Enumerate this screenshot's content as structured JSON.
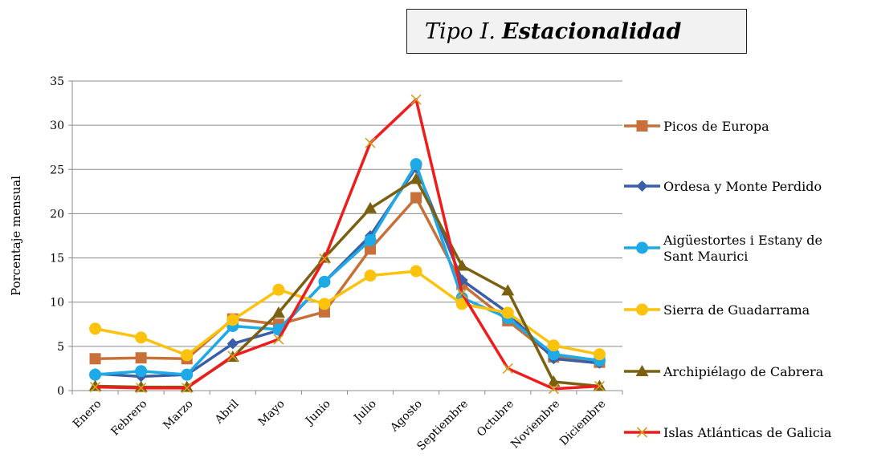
{
  "chart_data": {
    "type": "line",
    "title_prefix": "Tipo I.",
    "title_emph": "Estacionalidad",
    "xlabel": "",
    "ylabel": "Porcentaje mensual",
    "ylim": [
      0,
      35
    ],
    "yticks": [
      0,
      5,
      10,
      15,
      20,
      25,
      30,
      35
    ],
    "grid": "horizontal",
    "legend_position": "right",
    "categories": [
      "Enero",
      "Febrero",
      "Marzo",
      "Abril",
      "Mayo",
      "Junio",
      "Julio",
      "Agosto",
      "Septiembre",
      "Octubre",
      "Noviembre",
      "Diciembre"
    ],
    "series": [
      {
        "name": "Picos de Europa",
        "color": "#c8703a",
        "marker": "square",
        "values": [
          3.6,
          3.7,
          3.6,
          8.1,
          7.5,
          8.9,
          16.0,
          21.8,
          12.0,
          7.9,
          3.8,
          3.2
        ]
      },
      {
        "name": "Ordesa y Monte Perdido",
        "color": "#3a5ea8",
        "marker": "diamond",
        "values": [
          1.9,
          1.6,
          1.8,
          5.3,
          6.8,
          12.3,
          17.5,
          25.2,
          12.5,
          8.8,
          3.6,
          3.1
        ]
      },
      {
        "name": "Aigüestortes i Estany de Sant Maurici",
        "name_lines": [
          "Aigüestortes i Estany de",
          "Sant Maurici"
        ],
        "color": "#1eaae6",
        "marker": "circle",
        "values": [
          1.8,
          2.2,
          1.8,
          7.3,
          6.9,
          12.3,
          17.0,
          25.6,
          10.5,
          8.2,
          4.1,
          3.4
        ]
      },
      {
        "name": "Sierra de Guadarrama",
        "color": "#fcc20e",
        "marker": "circle",
        "values": [
          7.0,
          6.0,
          4.0,
          8.0,
          11.4,
          9.8,
          13.0,
          13.5,
          9.8,
          8.8,
          5.1,
          4.1
        ]
      },
      {
        "name": "Archipiélago de Cabrera",
        "color": "#7a6010",
        "marker": "triangle",
        "values": [
          0.5,
          0.4,
          0.4,
          3.8,
          8.8,
          15.0,
          20.6,
          23.9,
          14.1,
          11.3,
          1.0,
          0.5
        ]
      },
      {
        "name": "Islas Atlánticas de Galicia",
        "color": "#ee1c1c",
        "marker": "x",
        "values": [
          0.4,
          0.3,
          0.3,
          3.9,
          5.8,
          14.9,
          28.0,
          32.9,
          11.0,
          2.5,
          0.2,
          0.5
        ]
      }
    ]
  }
}
